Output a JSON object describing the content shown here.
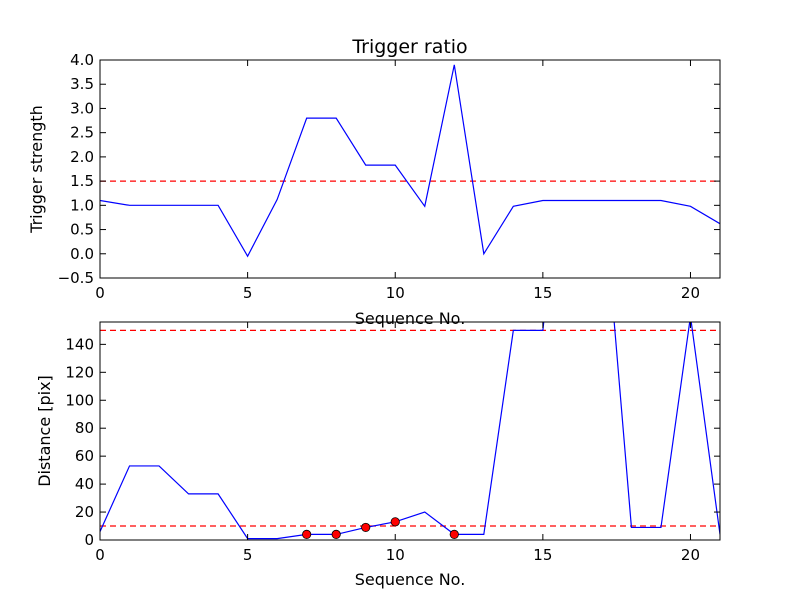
{
  "chart_data": [
    {
      "type": "line",
      "title": "Trigger ratio",
      "xlabel": "Sequence No.",
      "ylabel": "Trigger strength",
      "xlim": [
        0,
        21
      ],
      "ylim": [
        -0.5,
        4.0
      ],
      "xticks": [
        0,
        5,
        10,
        15,
        20
      ],
      "yticks": [
        -0.5,
        0.0,
        0.5,
        1.0,
        1.5,
        2.0,
        2.5,
        3.0,
        3.5,
        4.0
      ],
      "ytick_labels": [
        "−0.5",
        "0.0",
        "0.5",
        "1.0",
        "1.5",
        "2.0",
        "2.5",
        "3.0",
        "3.5",
        "4.0"
      ],
      "series": [
        {
          "color": "#0000ff",
          "x": [
            0,
            1,
            2,
            3,
            4,
            5,
            6,
            7,
            8,
            9,
            10,
            11,
            12,
            13,
            14,
            15,
            16,
            17,
            18,
            19,
            20,
            21
          ],
          "y": [
            1.1,
            1.0,
            1.0,
            1.0,
            1.0,
            -0.05,
            1.12,
            2.8,
            2.8,
            1.83,
            1.83,
            0.98,
            3.9,
            0.0,
            0.98,
            1.1,
            1.1,
            1.1,
            1.1,
            1.1,
            0.98,
            0.62
          ]
        }
      ],
      "threshold": {
        "value": 1.5,
        "color": "#ff0000",
        "style": "dashed"
      }
    },
    {
      "type": "line",
      "title": "",
      "xlabel": "Sequence No.",
      "ylabel": "Distance [pix]",
      "xlim": [
        0,
        21
      ],
      "ylim": [
        0,
        156
      ],
      "xticks": [
        0,
        5,
        10,
        15,
        20
      ],
      "yticks": [
        0,
        20,
        40,
        60,
        80,
        100,
        120,
        140
      ],
      "series": [
        {
          "color": "#0000ff",
          "x": [
            0,
            1,
            2,
            3,
            4,
            5,
            6,
            7,
            8,
            9,
            10,
            11,
            12,
            13,
            14,
            15,
            15.05,
            17.4,
            18,
            19,
            20,
            21
          ],
          "y": [
            6,
            53,
            53,
            33,
            33,
            1,
            1,
            4,
            4,
            9,
            13,
            20,
            4,
            4,
            150,
            150,
            160,
            160,
            9,
            9,
            160,
            4
          ]
        }
      ],
      "markers": {
        "color": "#ff0000",
        "points": [
          [
            7,
            4
          ],
          [
            8,
            4
          ],
          [
            9,
            9
          ],
          [
            10,
            13
          ],
          [
            12,
            4
          ]
        ]
      },
      "thresholds": [
        {
          "value": 150,
          "color": "#ff0000",
          "style": "dashed"
        },
        {
          "value": 10,
          "color": "#ff0000",
          "style": "dashed"
        }
      ]
    }
  ]
}
